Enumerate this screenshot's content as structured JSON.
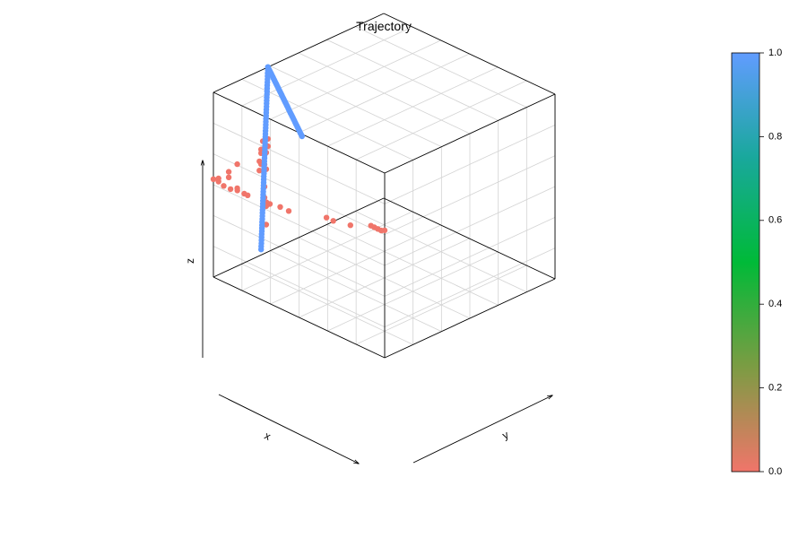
{
  "chart_data": {
    "type": "scatter3d",
    "title": "Trajectory",
    "xlabel": "x",
    "ylabel": "y",
    "zlabel": "z",
    "box": true,
    "grid": true,
    "colorbar": {
      "range": [
        0,
        1
      ],
      "ticks": [
        "0.0",
        "0.2",
        "0.4",
        "0.6",
        "0.8",
        "1.0"
      ],
      "placement": "right",
      "colors": [
        "#F0756A",
        "#7C9C43",
        "#00BA38",
        "#19A89C",
        "#619CFF"
      ]
    },
    "series": [
      {
        "value": 0,
        "color": "#F0756A",
        "points": [
          [
            0.0,
            0.0,
            0.69
          ],
          [
            0.02,
            0.0,
            0.68
          ],
          [
            0.04,
            0.0,
            0.68
          ],
          [
            0.06,
            0.0,
            0.68
          ],
          [
            0.08,
            0.0,
            0.68
          ],
          [
            0.2,
            0.0,
            0.63
          ],
          [
            0.3,
            0.0,
            0.61
          ],
          [
            0.34,
            0.0,
            0.61
          ],
          [
            0.56,
            0.0,
            0.55
          ],
          [
            0.61,
            0.0,
            0.55
          ],
          [
            0.67,
            0.0,
            0.54
          ],
          [
            0.69,
            0.0,
            0.54
          ],
          [
            0.8,
            0.0,
            0.53
          ],
          [
            0.82,
            0.0,
            0.53
          ],
          [
            0.86,
            0.0,
            0.53
          ],
          [
            0.9,
            0.0,
            0.52
          ],
          [
            0.94,
            0.0,
            0.52
          ],
          [
            0.97,
            0.0,
            0.53
          ],
          [
            1.0,
            0.0,
            0.53
          ],
          [
            0.99,
            0.02,
            0.53
          ],
          [
            0.99,
            0.08,
            0.54
          ],
          [
            0.99,
            0.08,
            0.51
          ],
          [
            0.99,
            0.13,
            0.56
          ],
          [
            0.99,
            0.13,
            0.43
          ],
          [
            0.99,
            0.26,
            0.52
          ],
          [
            0.99,
            0.26,
            0.47
          ],
          [
            0.99,
            0.27,
            0.58
          ],
          [
            0.99,
            0.27,
            0.56
          ],
          [
            0.99,
            0.27,
            0.5
          ],
          [
            0.99,
            0.28,
            0.62
          ],
          [
            0.99,
            0.29,
            0.57
          ],
          [
            0.99,
            0.29,
            0.49
          ],
          [
            0.99,
            0.3,
            0.55
          ],
          [
            0.99,
            0.31,
            0.62
          ],
          [
            0.99,
            0.31,
            0.58
          ],
          [
            0.99,
            0.3,
            0.46
          ],
          [
            0.99,
            0.29,
            0.37
          ],
          [
            0.99,
            0.29,
            0.31
          ],
          [
            0.99,
            0.3,
            0.26
          ],
          [
            0.99,
            0.3,
            0.16
          ]
        ]
      },
      {
        "value": 1,
        "color": "#619CFF",
        "points": []
      }
    ]
  }
}
